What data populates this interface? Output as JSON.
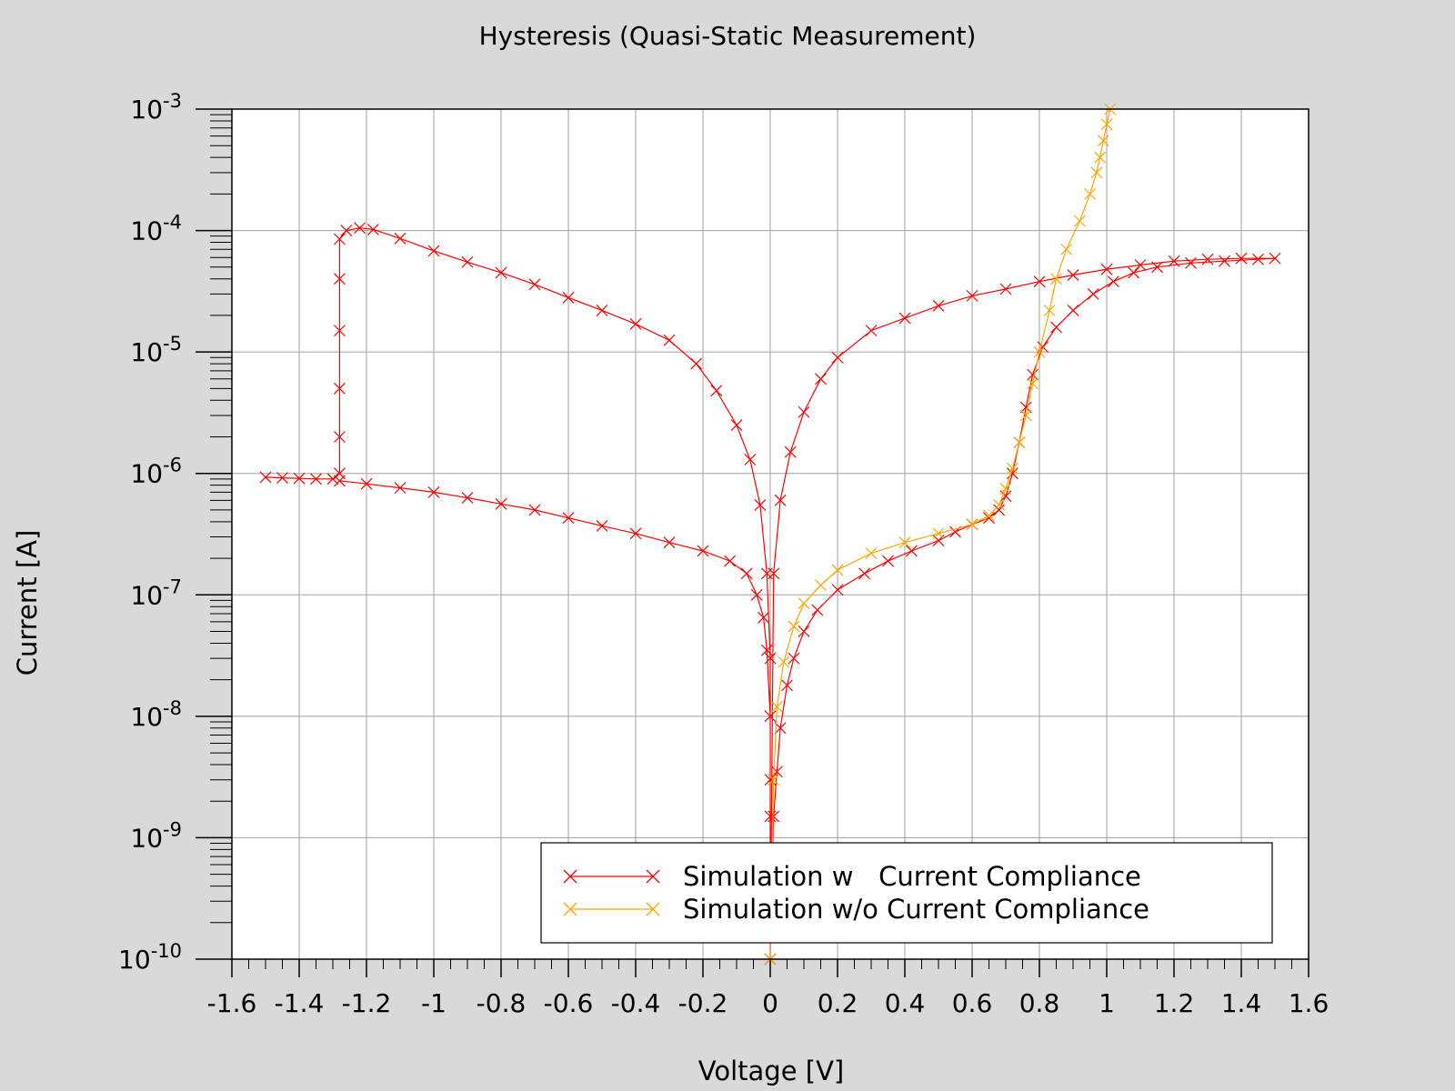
{
  "chart_data": {
    "type": "line",
    "title": "Hysteresis (Quasi-Static Measurement)",
    "xlabel": "Voltage [V]",
    "ylabel": "Current [A]",
    "xlim": [
      -1.6,
      1.6
    ],
    "ylim": [
      1e-10,
      0.001
    ],
    "y_scale": "log",
    "grid": true,
    "legend_position": "bottom-right",
    "x_ticks": [
      "-1.6",
      "-1.4",
      "-1.2",
      "-1",
      "-0.8",
      "-0.6",
      "-0.4",
      "-0.2",
      "0",
      "0.2",
      "0.4",
      "0.6",
      "0.8",
      "1",
      "1.2",
      "1.4",
      "1.6"
    ],
    "y_ticks": [
      {
        "base": "10",
        "exp": "-3"
      },
      {
        "base": "10",
        "exp": "-4"
      },
      {
        "base": "10",
        "exp": "-5"
      },
      {
        "base": "10",
        "exp": "-6"
      },
      {
        "base": "10",
        "exp": "-7"
      },
      {
        "base": "10",
        "exp": "-8"
      },
      {
        "base": "10",
        "exp": "-9"
      },
      {
        "base": "10",
        "exp": "-10"
      }
    ],
    "series": [
      {
        "name": "Simulation w   Current Compliance",
        "color": "#ff0000",
        "marker": "x",
        "x": [
          -1.5,
          -1.45,
          -1.4,
          -1.35,
          -1.3,
          -1.28,
          -1.28,
          -1.28,
          -1.28,
          -1.28,
          -1.28,
          -1.26,
          -1.22,
          -1.18,
          -1.1,
          -1.0,
          -0.9,
          -0.8,
          -0.7,
          -0.6,
          -0.5,
          -0.4,
          -0.3,
          -0.22,
          -0.16,
          -0.1,
          -0.06,
          -0.03,
          -0.01,
          0.0,
          0.0,
          0.0,
          0.01,
          0.03,
          0.06,
          0.1,
          0.15,
          0.2,
          0.3,
          0.4,
          0.5,
          0.6,
          0.7,
          0.8,
          0.9,
          1.0,
          1.1,
          1.2,
          1.3,
          1.4,
          1.5,
          1.45,
          1.35,
          1.25,
          1.15,
          1.08,
          1.02,
          0.96,
          0.9,
          0.85,
          0.81,
          0.78,
          0.76,
          0.74,
          0.72,
          0.7,
          0.68,
          0.65,
          0.6,
          0.55,
          0.5,
          0.42,
          0.35,
          0.28,
          0.2,
          0.14,
          0.1,
          0.07,
          0.05,
          0.03,
          0.02,
          0.01,
          0.005,
          0.0,
          0.0,
          0.0,
          -0.01,
          -0.02,
          -0.04,
          -0.07,
          -0.12,
          -0.2,
          -0.3,
          -0.4,
          -0.5,
          -0.6,
          -0.7,
          -0.8,
          -0.9,
          -1.0,
          -1.1,
          -1.2,
          -1.28
        ],
        "y": [
          9.3e-07,
          9.2e-07,
          9.1e-07,
          9e-07,
          9e-07,
          1e-06,
          2e-06,
          5e-06,
          1.5e-05,
          4e-05,
          8.5e-05,
          0.0001,
          0.000105,
          0.000102,
          8.6e-05,
          6.8e-05,
          5.5e-05,
          4.5e-05,
          3.6e-05,
          2.8e-05,
          2.2e-05,
          1.7e-05,
          1.25e-05,
          8e-06,
          4.8e-06,
          2.5e-06,
          1.3e-06,
          5.5e-07,
          1.5e-07,
          3e-08,
          3e-09,
          1e-10,
          1.5e-07,
          6e-07,
          1.5e-06,
          3.2e-06,
          6e-06,
          9e-06,
          1.5e-05,
          1.9e-05,
          2.4e-05,
          2.9e-05,
          3.3e-05,
          3.8e-05,
          4.3e-05,
          4.8e-05,
          5.2e-05,
          5.6e-05,
          5.8e-05,
          5.9e-05,
          5.9e-05,
          5.8e-05,
          5.6e-05,
          5.4e-05,
          5e-05,
          4.5e-05,
          3.8e-05,
          3e-05,
          2.2e-05,
          1.6e-05,
          1.1e-05,
          6.5e-06,
          3.5e-06,
          1.8e-06,
          1e-06,
          6.5e-07,
          5e-07,
          4.3e-07,
          3.8e-07,
          3.3e-07,
          2.8e-07,
          2.3e-07,
          1.9e-07,
          1.5e-07,
          1.1e-07,
          7.5e-08,
          5e-08,
          3e-08,
          1.8e-08,
          8e-09,
          3.5e-09,
          1.5e-09,
          5e-10,
          1e-10,
          1.5e-09,
          1e-08,
          3.5e-08,
          6.5e-08,
          1e-07,
          1.5e-07,
          1.9e-07,
          2.3e-07,
          2.7e-07,
          3.2e-07,
          3.7e-07,
          4.3e-07,
          5e-07,
          5.6e-07,
          6.3e-07,
          7e-07,
          7.6e-07,
          8.2e-07,
          8.7e-07
        ]
      },
      {
        "name": "Simulation w/o Current Compliance",
        "color": "#ffa500",
        "marker": "x",
        "x": [
          0.0,
          0.005,
          0.01,
          0.02,
          0.04,
          0.07,
          0.1,
          0.15,
          0.2,
          0.3,
          0.4,
          0.5,
          0.6,
          0.65,
          0.68,
          0.7,
          0.72,
          0.74,
          0.76,
          0.78,
          0.8,
          0.83,
          0.85,
          0.88,
          0.92,
          0.95,
          0.97,
          0.98,
          0.99,
          1.0,
          1.01
        ],
        "y": [
          1e-10,
          5e-10,
          3e-09,
          1.2e-08,
          2.8e-08,
          5.5e-08,
          8.5e-08,
          1.2e-07,
          1.6e-07,
          2.2e-07,
          2.7e-07,
          3.2e-07,
          3.8e-07,
          4.5e-07,
          5.5e-07,
          7.5e-07,
          1.1e-06,
          1.8e-06,
          3e-06,
          5.5e-06,
          1e-05,
          2.2e-05,
          4e-05,
          7e-05,
          0.00012,
          0.0002,
          0.0003,
          0.0004,
          0.00055,
          0.00075,
          0.001
        ]
      }
    ]
  }
}
